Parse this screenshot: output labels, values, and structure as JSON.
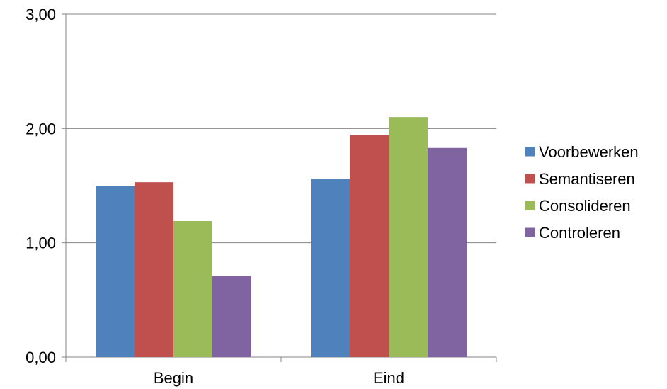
{
  "chart_data": {
    "type": "bar",
    "categories": [
      "Begin",
      "Eind"
    ],
    "series": [
      {
        "name": "Voorbewerken",
        "color": "#4F81BD",
        "values": [
          1.5,
          1.56
        ]
      },
      {
        "name": "Semantiseren",
        "color": "#C0504D",
        "values": [
          1.53,
          1.94
        ]
      },
      {
        "name": "Consolideren",
        "color": "#9BBB59",
        "values": [
          1.19,
          2.1
        ]
      },
      {
        "name": "Controleren",
        "color": "#8064A2",
        "values": [
          0.71,
          1.83
        ]
      }
    ],
    "ylim": [
      0,
      3
    ],
    "yticks": [
      "0,00",
      "1,00",
      "2,00",
      "3,00"
    ],
    "grid": true,
    "legend_position": "right",
    "title": "",
    "xlabel": "",
    "ylabel": ""
  }
}
